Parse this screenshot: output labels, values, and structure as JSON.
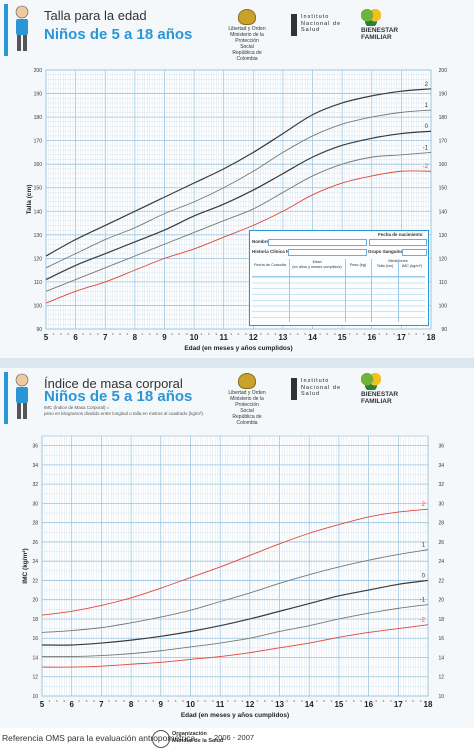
{
  "top_header": {
    "title": "Talla para la edad",
    "subtitle": "Niños de 5 a 18 años"
  },
  "bottom_header": {
    "title": "Índice de masa corporal",
    "subtitle": "Niños de 5 a 18 años",
    "note_line1": "IMC (Índice de Masa Corporal) =",
    "note_line2": "peso en kilogramos dividido entre longitud o talla en metros al cuadrado (kg/m²)."
  },
  "logos": {
    "ministry_line1": "Libertad y Orden",
    "ministry_line2": "Ministerio de la Protección Social",
    "ministry_line3": "República de Colombia",
    "institute_line1": "Instituto",
    "institute_line2": "Nacional de",
    "institute_line3": "Salud",
    "bienestar_line1": "BIENESTAR",
    "bienestar_line2": "FAMILIAR"
  },
  "record_box": {
    "nombre": "Nombre",
    "fecha_nacimiento": "Fecha de nacimiento",
    "historia": "Historia Clínica No.",
    "grupo": "Grupo Sanguíneo",
    "fecha_consulta": "Fecha de Consulta",
    "edad": "Edad",
    "edad_sub": "(en años y meses cumplidos)",
    "peso": "Peso (kg)",
    "mediciones": "Mediciones",
    "talla": "Talla (cm)",
    "imc": "IMC (kg/m²)"
  },
  "footer": {
    "reference": "Referencia OMS para la evaluación antropométrica",
    "who_line1": "Organización",
    "who_line2": "Mundial de la Salud",
    "years": "2006 - 2007"
  },
  "colors": {
    "median": "#3a3a3a",
    "sd1": "#777777",
    "sd2_talla": "#555555",
    "minus2_talla": "#e0453a",
    "sd2_imc": "#e0453a",
    "grid_major": "#9bc3dc",
    "grid_minor": "#cfe1ec",
    "accent": "#2a96d6"
  },
  "chart_data": [
    {
      "type": "line",
      "xlabel": "Edad (en meses y años cumplidos)",
      "ylabel": "Talla (cm)",
      "xlim": [
        5,
        18
      ],
      "ylim": [
        90,
        200
      ],
      "x_ticks": [
        "5",
        "6",
        "7",
        "8",
        "9",
        "10",
        "11",
        "12",
        "13",
        "14",
        "15",
        "16",
        "17",
        "18"
      ],
      "month_ticks": [
        "3",
        "6",
        "9"
      ],
      "y_ticks": [
        90,
        100,
        110,
        120,
        130,
        140,
        150,
        160,
        170,
        180,
        190,
        200
      ],
      "grid": true,
      "x": [
        5,
        6,
        7,
        8,
        9,
        10,
        11,
        12,
        13,
        14,
        15,
        16,
        17,
        18
      ],
      "series": [
        {
          "name": "2",
          "values": [
            121,
            128,
            134,
            140,
            146,
            152,
            158,
            165,
            173,
            181,
            186,
            189,
            191,
            192
          ]
        },
        {
          "name": "1",
          "values": [
            116,
            122,
            128,
            133,
            139,
            144,
            150,
            157,
            165,
            172,
            177,
            180,
            182,
            183
          ]
        },
        {
          "name": "0",
          "values": [
            111,
            117,
            122,
            127,
            132,
            138,
            143,
            149,
            156,
            163,
            168,
            171,
            173,
            174
          ]
        },
        {
          "name": "-1",
          "values": [
            106,
            111,
            116,
            121,
            126,
            131,
            136,
            141,
            148,
            155,
            160,
            163,
            164,
            165
          ]
        },
        {
          "name": "-2",
          "values": [
            101,
            106,
            110,
            115,
            120,
            124,
            129,
            134,
            140,
            147,
            152,
            155,
            157,
            157
          ]
        }
      ]
    },
    {
      "type": "line",
      "xlabel": "Edad (en meses y años cumplidos)",
      "ylabel": "IMC (kg/m²)",
      "xlim": [
        5,
        18
      ],
      "ylim": [
        10,
        37
      ],
      "x_ticks": [
        "5",
        "6",
        "7",
        "8",
        "9",
        "10",
        "11",
        "12",
        "13",
        "14",
        "15",
        "16",
        "17",
        "18"
      ],
      "month_ticks": [
        "3",
        "6",
        "9"
      ],
      "y_ticks": [
        10,
        12,
        14,
        16,
        18,
        20,
        22,
        24,
        26,
        28,
        30,
        32,
        34,
        36
      ],
      "grid": true,
      "x": [
        5,
        6,
        7,
        8,
        9,
        10,
        11,
        12,
        13,
        14,
        15,
        16,
        17,
        18
      ],
      "series": [
        {
          "name": "2",
          "values": [
            18.4,
            18.8,
            19.4,
            20.2,
            21.2,
            22.3,
            23.4,
            24.6,
            25.8,
            26.9,
            27.8,
            28.6,
            29.1,
            29.4
          ]
        },
        {
          "name": "1",
          "values": [
            16.6,
            16.8,
            17.1,
            17.6,
            18.2,
            18.9,
            19.8,
            20.7,
            21.7,
            22.6,
            23.4,
            24.1,
            24.7,
            25.2
          ]
        },
        {
          "name": "0",
          "values": [
            15.3,
            15.3,
            15.5,
            15.8,
            16.2,
            16.7,
            17.3,
            18.0,
            18.8,
            19.6,
            20.4,
            21.0,
            21.6,
            22.0
          ]
        },
        {
          "name": "-1",
          "values": [
            14.1,
            14.1,
            14.2,
            14.4,
            14.7,
            15.1,
            15.5,
            16.0,
            16.7,
            17.3,
            18.0,
            18.6,
            19.1,
            19.5
          ]
        },
        {
          "name": "-2",
          "values": [
            13.0,
            13.0,
            13.1,
            13.3,
            13.5,
            13.8,
            14.1,
            14.5,
            15.0,
            15.5,
            16.1,
            16.6,
            17.0,
            17.4
          ]
        }
      ]
    }
  ]
}
